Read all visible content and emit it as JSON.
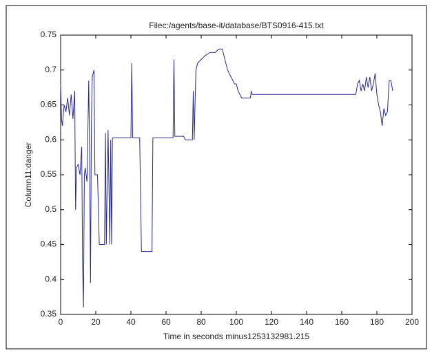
{
  "chart_data": {
    "type": "line",
    "title": "Filec:/agents/base-it/database/BTS0916-415.txt",
    "x_label": "Time in seconds minus1253132981.215",
    "y_label": "Column11:danger",
    "x": [
      0,
      0.5,
      1,
      2,
      3,
      4,
      5,
      6,
      7,
      8,
      8.5,
      9,
      10,
      11,
      12,
      12.5,
      13,
      13.5,
      14,
      15,
      16,
      16.5,
      17,
      17.5,
      18,
      19,
      19.5,
      21,
      22,
      25,
      25.5,
      26,
      27,
      28,
      28.5,
      29,
      29.5,
      40,
      40.5,
      41,
      45,
      46,
      52,
      52.5,
      64,
      64.5,
      65,
      70,
      71,
      75,
      75.5,
      76,
      77,
      78,
      80,
      82,
      85,
      88,
      90,
      92,
      93,
      95,
      97,
      99,
      100,
      101,
      103,
      108,
      108.5,
      109,
      168,
      169,
      170,
      171,
      172,
      173,
      174,
      175,
      176,
      177,
      178,
      179,
      180,
      181,
      182,
      183,
      184,
      185,
      186,
      187,
      188,
      189
    ],
    "series": [
      {
        "name": "Column11:danger",
        "color": "#28288c",
        "values": [
          0.68,
          0.63,
          0.62,
          0.65,
          0.64,
          0.66,
          0.635,
          0.665,
          0.63,
          0.67,
          0.5,
          0.56,
          0.565,
          0.55,
          0.59,
          0.42,
          0.36,
          0.55,
          0.56,
          0.54,
          0.685,
          0.58,
          0.395,
          0.62,
          0.69,
          0.7,
          0.55,
          0.55,
          0.45,
          0.45,
          0.61,
          0.45,
          0.614,
          0.45,
          0.6,
          0.45,
          0.603,
          0.603,
          0.71,
          0.603,
          0.603,
          0.44,
          0.44,
          0.603,
          0.603,
          0.715,
          0.605,
          0.605,
          0.6,
          0.6,
          0.67,
          0.6,
          0.7,
          0.71,
          0.715,
          0.72,
          0.725,
          0.725,
          0.73,
          0.73,
          0.72,
          0.7,
          0.69,
          0.68,
          0.68,
          0.67,
          0.66,
          0.66,
          0.67,
          0.665,
          0.665,
          0.68,
          0.685,
          0.67,
          0.68,
          0.67,
          0.69,
          0.675,
          0.69,
          0.67,
          0.68,
          0.695,
          0.665,
          0.65,
          0.64,
          0.62,
          0.645,
          0.635,
          0.64,
          0.685,
          0.685,
          0.67
        ]
      }
    ],
    "xlim": [
      0,
      200
    ],
    "xticks": [
      0,
      20,
      40,
      60,
      80,
      100,
      120,
      140,
      160,
      180,
      200
    ],
    "ylim": [
      0.35,
      0.75
    ],
    "yticks": [
      0.35,
      0.4,
      0.45,
      0.5,
      0.55,
      0.6,
      0.65,
      0.7,
      0.75
    ],
    "grid": false
  }
}
